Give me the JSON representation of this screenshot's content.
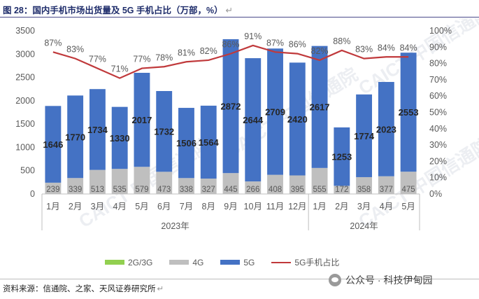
{
  "title": "图 28：国内手机市场出货量及 5G 手机占比（万部，%）",
  "source": "资料来源：信通院、之家、天风证券研究所",
  "watermark_tag": "公众号 · 科技伊甸园",
  "watermark_logo": "CAICT 中国信通院",
  "legend": [
    "2G/3G",
    "4G",
    "5G",
    "5G手机占比"
  ],
  "colors": {
    "g2g3": "#92d050",
    "g4": "#bfbfbf",
    "g5": "#4472c4",
    "ratio": "#c0393b"
  },
  "chart_data": {
    "type": "bar",
    "stacked": true,
    "categories": [
      "1月",
      "2月",
      "3月",
      "4月",
      "5月",
      "6月",
      "7月",
      "8月",
      "9月",
      "10月",
      "11月",
      "12月",
      "1月",
      "2月",
      "3月",
      "4月",
      "5月"
    ],
    "year_groups": [
      {
        "label": "2023年",
        "start": 0,
        "end": 11
      },
      {
        "label": "2024年",
        "start": 12,
        "end": 16
      }
    ],
    "series": [
      {
        "name": "2G/3G",
        "values": [
          3,
          3,
          3,
          3,
          3,
          3,
          3,
          3,
          3,
          3,
          3,
          3,
          3,
          3,
          3,
          3,
          3
        ]
      },
      {
        "name": "4G",
        "values": [
          239,
          339,
          513,
          535,
          579,
          473,
          338,
          327,
          445,
          266,
          408,
          395,
          555,
          172,
          358,
          377,
          475
        ]
      },
      {
        "name": "5G",
        "values": [
          1646,
          1770,
          1734,
          1330,
          2017,
          1732,
          1506,
          1564,
          2872,
          2644,
          2709,
          2420,
          2617,
          1253,
          1774,
          2023,
          2553
        ]
      }
    ],
    "line_series": {
      "name": "5G手机占比",
      "axis": "right",
      "values": [
        87,
        83,
        77,
        71,
        77,
        78,
        81,
        82,
        86,
        91,
        87,
        86,
        82,
        88,
        83,
        84,
        84
      ]
    },
    "ylim": [
      0,
      3500
    ],
    "yticks": [
      0,
      500,
      1000,
      1500,
      2000,
      2500,
      3000,
      3500
    ],
    "y2lim": [
      0,
      100
    ],
    "y2ticks": [
      0,
      10,
      20,
      30,
      40,
      50,
      60,
      70,
      80,
      90,
      100
    ],
    "legend_position": "bottom",
    "grid": false
  }
}
